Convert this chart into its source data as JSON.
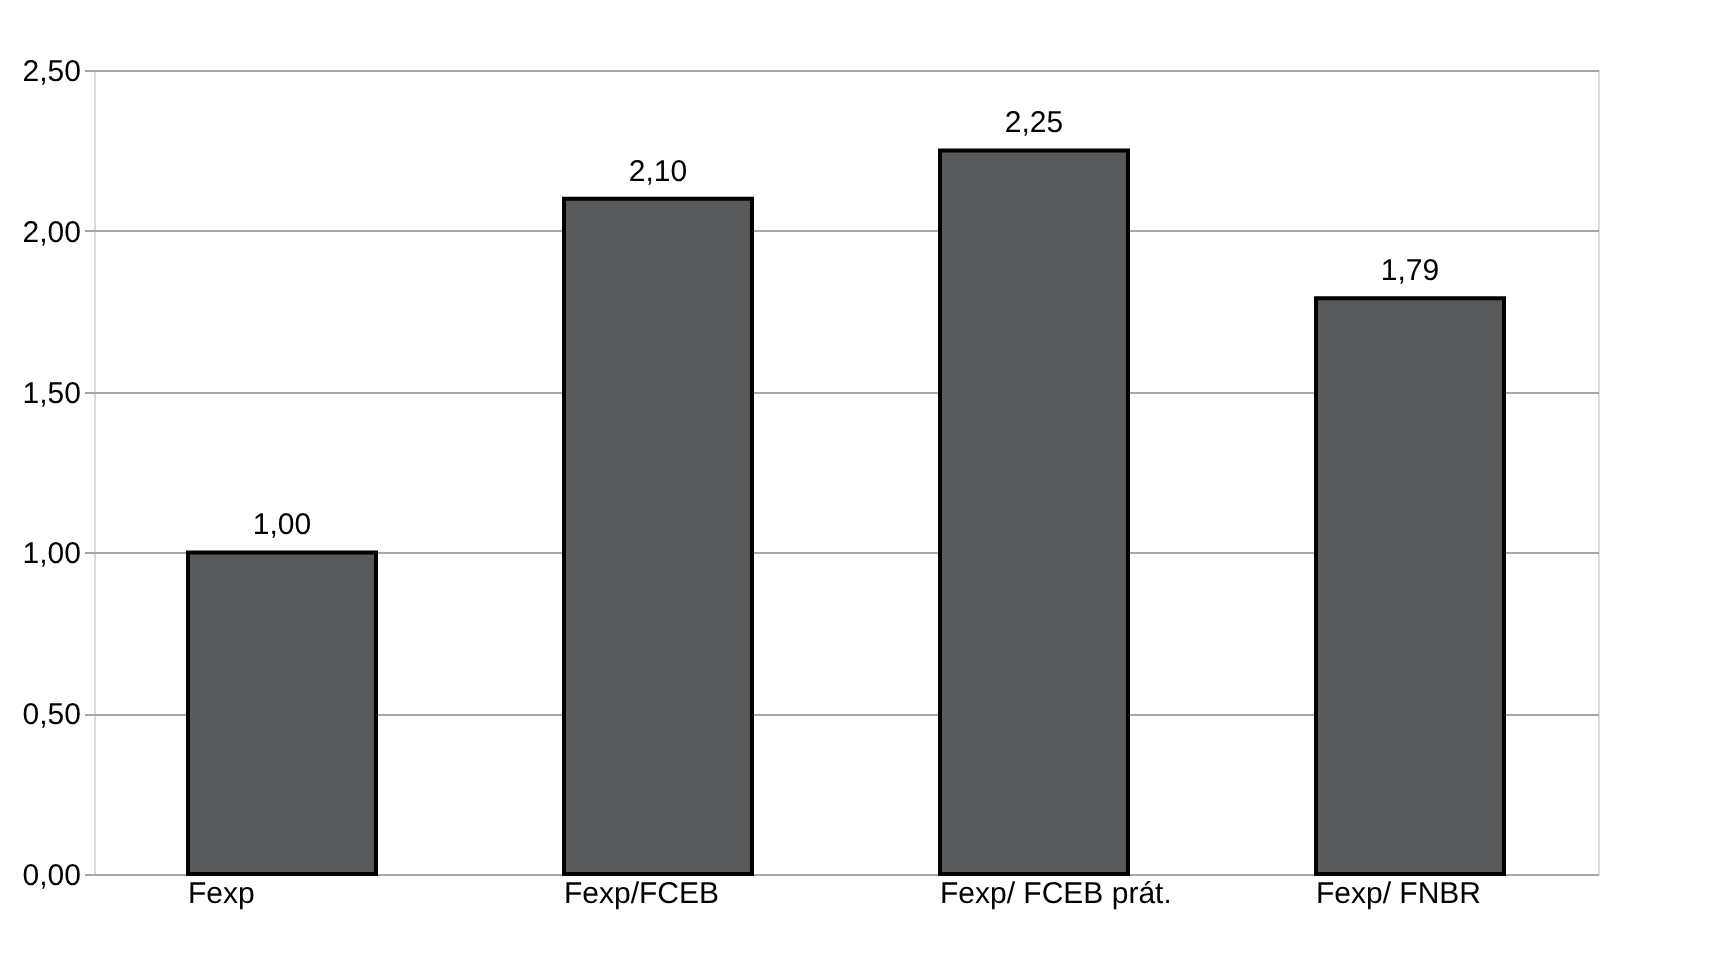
{
  "chart_data": {
    "type": "bar",
    "categories": [
      "Fexp",
      "Fexp/FCEB",
      "Fexp/ FCEB prát.",
      "Fexp/ FNBR"
    ],
    "values": [
      1.0,
      2.1,
      2.25,
      1.79
    ],
    "value_labels": [
      "1,00",
      "2,10",
      "2,25",
      "1,79"
    ],
    "color": "#58595b",
    "ylim": [
      0,
      2.5
    ],
    "yticks": [
      {
        "value": 0,
        "label": "0,00"
      },
      {
        "value": 0.5,
        "label": "0,50"
      },
      {
        "value": 1,
        "label": "1,00"
      },
      {
        "value": 1.5,
        "label": "1,50"
      },
      {
        "value": 2,
        "label": "2,00"
      },
      {
        "value": 2.5,
        "label": "2,50"
      }
    ],
    "grid": "y"
  }
}
